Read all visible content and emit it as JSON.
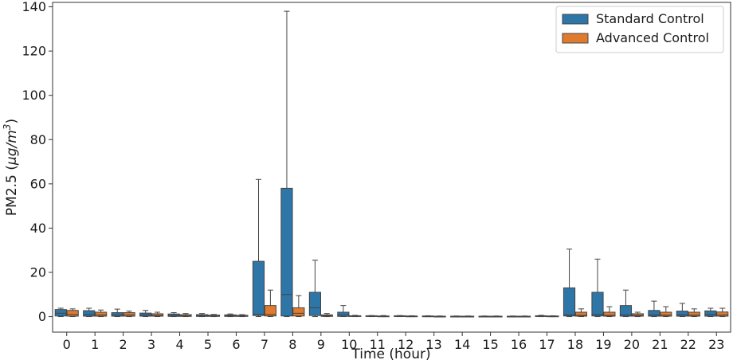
{
  "chart_data": {
    "type": "box",
    "xlabel": "Time (hour)",
    "ylabel": "PM2.5 (μg/m³)",
    "ylim": [
      -7,
      142
    ],
    "yticks": [
      0,
      20,
      40,
      60,
      80,
      100,
      120,
      140
    ],
    "categories": [
      "0",
      "1",
      "2",
      "3",
      "4",
      "5",
      "6",
      "7",
      "8",
      "9",
      "10",
      "11",
      "12",
      "13",
      "14",
      "15",
      "16",
      "17",
      "18",
      "19",
      "20",
      "21",
      "22",
      "23"
    ],
    "legend_position": "top-right",
    "grid": false,
    "series": [
      {
        "name": "Standard Control",
        "color": "#2e75a8",
        "boxes": [
          {
            "q1": 0.3,
            "median": 1.5,
            "q3": 3.2,
            "whisker_low": 0,
            "whisker_high": 3.8
          },
          {
            "q1": 0.2,
            "median": 1.0,
            "q3": 2.7,
            "whisker_low": 0,
            "whisker_high": 3.8
          },
          {
            "q1": 0.2,
            "median": 0.8,
            "q3": 1.8,
            "whisker_low": 0,
            "whisker_high": 3.4
          },
          {
            "q1": 0.2,
            "median": 0.8,
            "q3": 1.6,
            "whisker_low": 0,
            "whisker_high": 2.8
          },
          {
            "q1": 0.1,
            "median": 0.6,
            "q3": 1.2,
            "whisker_low": 0,
            "whisker_high": 1.8
          },
          {
            "q1": 0.1,
            "median": 0.4,
            "q3": 0.9,
            "whisker_low": 0,
            "whisker_high": 1.4
          },
          {
            "q1": 0.1,
            "median": 0.4,
            "q3": 0.8,
            "whisker_low": 0,
            "whisker_high": 1.2
          },
          {
            "q1": 0.5,
            "median": 1.0,
            "q3": 25,
            "whisker_low": 0,
            "whisker_high": 62
          },
          {
            "q1": 0.3,
            "median": 10,
            "q3": 58,
            "whisker_low": 0,
            "whisker_high": 138
          },
          {
            "q1": 0.5,
            "median": 4,
            "q3": 11,
            "whisker_low": 0,
            "whisker_high": 25.5
          },
          {
            "q1": 0.1,
            "median": 0.8,
            "q3": 2.0,
            "whisker_low": 0,
            "whisker_high": 5
          },
          {
            "q1": 0.05,
            "median": 0.2,
            "q3": 0.4,
            "whisker_low": 0,
            "whisker_high": 0.5
          },
          {
            "q1": 0.05,
            "median": 0.2,
            "q3": 0.4,
            "whisker_low": 0,
            "whisker_high": 0.5
          },
          {
            "q1": 0.05,
            "median": 0.2,
            "q3": 0.3,
            "whisker_low": 0,
            "whisker_high": 0.4
          },
          {
            "q1": 0.05,
            "median": 0.1,
            "q3": 0.2,
            "whisker_low": 0,
            "whisker_high": 0.3
          },
          {
            "q1": 0.05,
            "median": 0.1,
            "q3": 0.2,
            "whisker_low": 0,
            "whisker_high": 0.3
          },
          {
            "q1": 0.05,
            "median": 0.1,
            "q3": 0.2,
            "whisker_low": 0,
            "whisker_high": 0.3
          },
          {
            "q1": 0.05,
            "median": 0.2,
            "q3": 0.4,
            "whisker_low": 0,
            "whisker_high": 0.6
          },
          {
            "q1": 0.3,
            "median": 0.8,
            "q3": 13,
            "whisker_low": 0,
            "whisker_high": 30.5
          },
          {
            "q1": 0.3,
            "median": 1.0,
            "q3": 11,
            "whisker_low": 0,
            "whisker_high": 26
          },
          {
            "q1": 0.2,
            "median": 0.8,
            "q3": 5,
            "whisker_low": 0,
            "whisker_high": 12
          },
          {
            "q1": 0.2,
            "median": 0.8,
            "q3": 2.8,
            "whisker_low": 0,
            "whisker_high": 7
          },
          {
            "q1": 0.2,
            "median": 0.8,
            "q3": 2.5,
            "whisker_low": 0,
            "whisker_high": 6
          },
          {
            "q1": 0.2,
            "median": 1.0,
            "q3": 2.6,
            "whisker_low": 0,
            "whisker_high": 3.8
          }
        ]
      },
      {
        "name": "Advanced Control",
        "color": "#e07b2e",
        "boxes": [
          {
            "q1": 0.2,
            "median": 1.0,
            "q3": 2.8,
            "whisker_low": 0,
            "whisker_high": 3.5
          },
          {
            "q1": 0.2,
            "median": 0.8,
            "q3": 2.0,
            "whisker_low": 0,
            "whisker_high": 3.0
          },
          {
            "q1": 0.2,
            "median": 0.8,
            "q3": 1.8,
            "whisker_low": 0,
            "whisker_high": 2.5
          },
          {
            "q1": 0.2,
            "median": 0.6,
            "q3": 1.3,
            "whisker_low": 0,
            "whisker_high": 2.0
          },
          {
            "q1": 0.1,
            "median": 0.4,
            "q3": 0.9,
            "whisker_low": 0,
            "whisker_high": 1.4
          },
          {
            "q1": 0.1,
            "median": 0.3,
            "q3": 0.7,
            "whisker_low": 0,
            "whisker_high": 1.0
          },
          {
            "q1": 0.1,
            "median": 0.3,
            "q3": 0.6,
            "whisker_low": 0,
            "whisker_high": 0.9
          },
          {
            "q1": 0.3,
            "median": 1.0,
            "q3": 5,
            "whisker_low": 0,
            "whisker_high": 12
          },
          {
            "q1": 0.3,
            "median": 1.5,
            "q3": 4,
            "whisker_low": 0,
            "whisker_high": 9.5
          },
          {
            "q1": 0.1,
            "median": 0.4,
            "q3": 0.8,
            "whisker_low": 0,
            "whisker_high": 1.4
          },
          {
            "q1": 0.05,
            "median": 0.2,
            "q3": 0.4,
            "whisker_low": 0,
            "whisker_high": 0.6
          },
          {
            "q1": 0.05,
            "median": 0.2,
            "q3": 0.3,
            "whisker_low": 0,
            "whisker_high": 0.5
          },
          {
            "q1": 0.05,
            "median": 0.2,
            "q3": 0.3,
            "whisker_low": 0,
            "whisker_high": 0.4
          },
          {
            "q1": 0.05,
            "median": 0.1,
            "q3": 0.2,
            "whisker_low": 0,
            "whisker_high": 0.3
          },
          {
            "q1": 0.05,
            "median": 0.1,
            "q3": 0.2,
            "whisker_low": 0,
            "whisker_high": 0.3
          },
          {
            "q1": 0.05,
            "median": 0.1,
            "q3": 0.2,
            "whisker_low": 0,
            "whisker_high": 0.3
          },
          {
            "q1": 0.05,
            "median": 0.1,
            "q3": 0.2,
            "whisker_low": 0,
            "whisker_high": 0.3
          },
          {
            "q1": 0.05,
            "median": 0.2,
            "q3": 0.3,
            "whisker_low": 0,
            "whisker_high": 0.4
          },
          {
            "q1": 0.2,
            "median": 0.6,
            "q3": 2.0,
            "whisker_low": 0,
            "whisker_high": 3.5
          },
          {
            "q1": 0.2,
            "median": 0.6,
            "q3": 2.0,
            "whisker_low": 0,
            "whisker_high": 4.5
          },
          {
            "q1": 0.2,
            "median": 0.6,
            "q3": 1.3,
            "whisker_low": 0,
            "whisker_high": 2.0
          },
          {
            "q1": 0.2,
            "median": 0.7,
            "q3": 2.0,
            "whisker_low": 0,
            "whisker_high": 4.5
          },
          {
            "q1": 0.2,
            "median": 0.7,
            "q3": 2.0,
            "whisker_low": 0,
            "whisker_high": 3.5
          },
          {
            "q1": 0.2,
            "median": 0.8,
            "q3": 2.1,
            "whisker_low": 0,
            "whisker_high": 3.8
          }
        ]
      }
    ]
  }
}
